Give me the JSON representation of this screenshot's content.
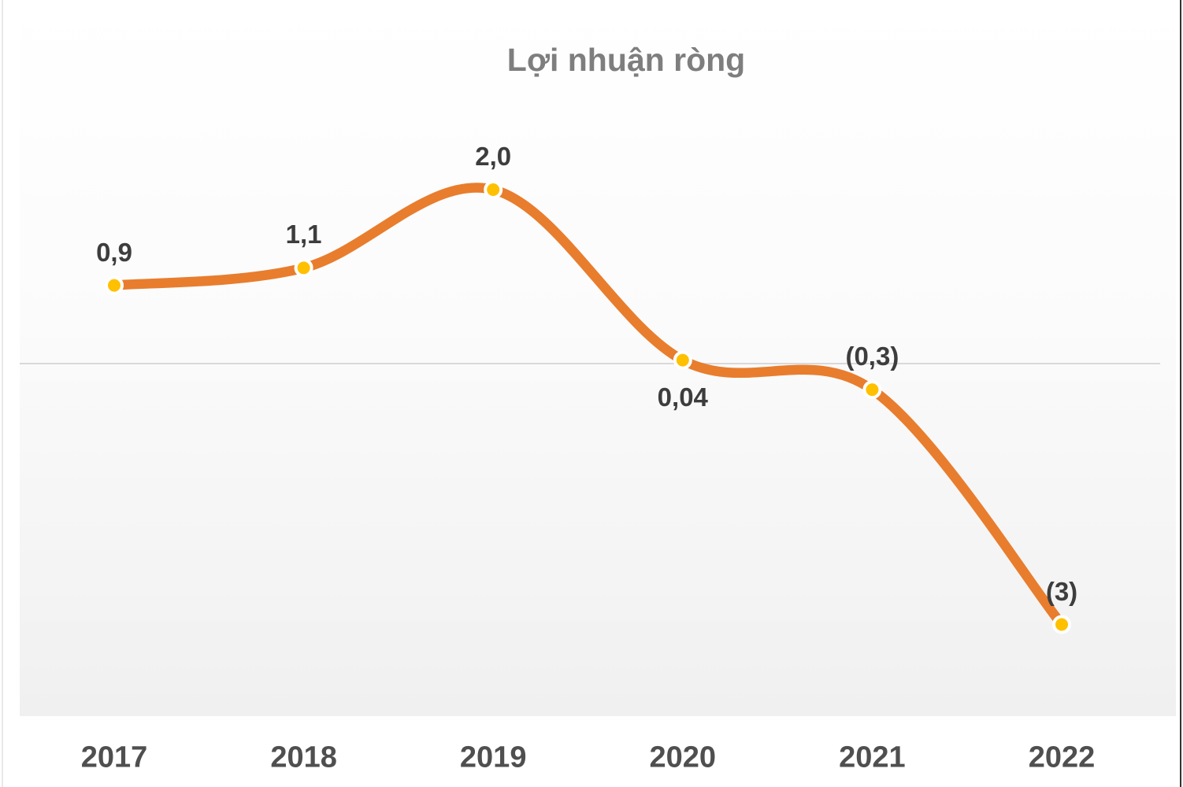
{
  "title": "Lợi nhuận ròng",
  "chart_data": {
    "type": "line",
    "title": "Lợi nhuận ròng",
    "categories": [
      "2017",
      "2018",
      "2019",
      "2020",
      "2021",
      "2022"
    ],
    "series": [
      {
        "name": "Lợi nhuận ròng",
        "values": [
          0.9,
          1.1,
          2.0,
          0.04,
          -0.3,
          -3
        ],
        "point_labels": [
          "0,9",
          "1,1",
          "2,0",
          "0,04",
          "(0,3)",
          "(3)"
        ],
        "label_side": [
          "above",
          "above",
          "above",
          "below",
          "above",
          "above"
        ]
      }
    ],
    "xlabel": "",
    "ylabel": "",
    "ylim": [
      -4.05,
      4.1
    ],
    "grid": "single-zero-line",
    "legend": false,
    "line_style": "smooth",
    "colors": {
      "line": "#E87D2E",
      "marker": "#FFC000",
      "marker_ring": "#FFFFFF",
      "gridline": "#D9D9D9",
      "title": "#7E7E7E",
      "point_label": "#3D3D3D",
      "axis_label": "#4F4F4F",
      "plot_bg_top": "#FFFFFF",
      "plot_bg_bottom": "#F0F0F0"
    }
  }
}
